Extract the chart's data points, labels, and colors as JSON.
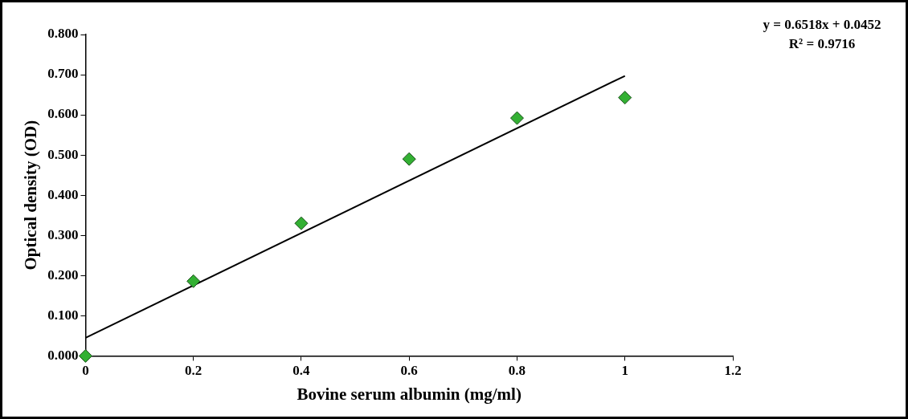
{
  "chart_data": {
    "type": "scatter",
    "xlabel": "Bovine serum albumin (mg/ml)",
    "ylabel": "Optical density (OD)",
    "annotations": [
      "y = 0.6518x + 0.0452",
      "R² = 0.9716"
    ],
    "series": [
      {
        "marker": "diamond",
        "color": "#33b033",
        "x": [
          0,
          0.2,
          0.4,
          0.6,
          0.8,
          1.0
        ],
        "values": [
          0.0,
          0.186,
          0.33,
          0.49,
          0.592,
          0.643
        ]
      },
      {
        "type": "line",
        "marker": "none",
        "color": "#000000",
        "x": [
          0,
          1.0
        ],
        "values": [
          0.045,
          0.697
        ]
      }
    ],
    "xlim": [
      0,
      1.2
    ],
    "xticks": [
      0,
      0.2,
      0.4,
      0.6,
      0.8,
      1,
      1.2
    ],
    "ylim": [
      0,
      0.8
    ],
    "yticks": [
      {
        "value": 0,
        "label": "0.000"
      },
      {
        "value": 0.1,
        "label": "0.100"
      },
      {
        "value": 0.2,
        "label": "0.200"
      },
      {
        "value": 0.3,
        "label": "0.300"
      },
      {
        "value": 0.4,
        "label": "0.400"
      },
      {
        "value": 0.5,
        "label": "0.500"
      },
      {
        "value": 0.6,
        "label": "0.600"
      },
      {
        "value": 0.7,
        "label": "0.700"
      },
      {
        "value": 0.8,
        "label": "0.800"
      }
    ],
    "grid": false,
    "legend": false
  }
}
